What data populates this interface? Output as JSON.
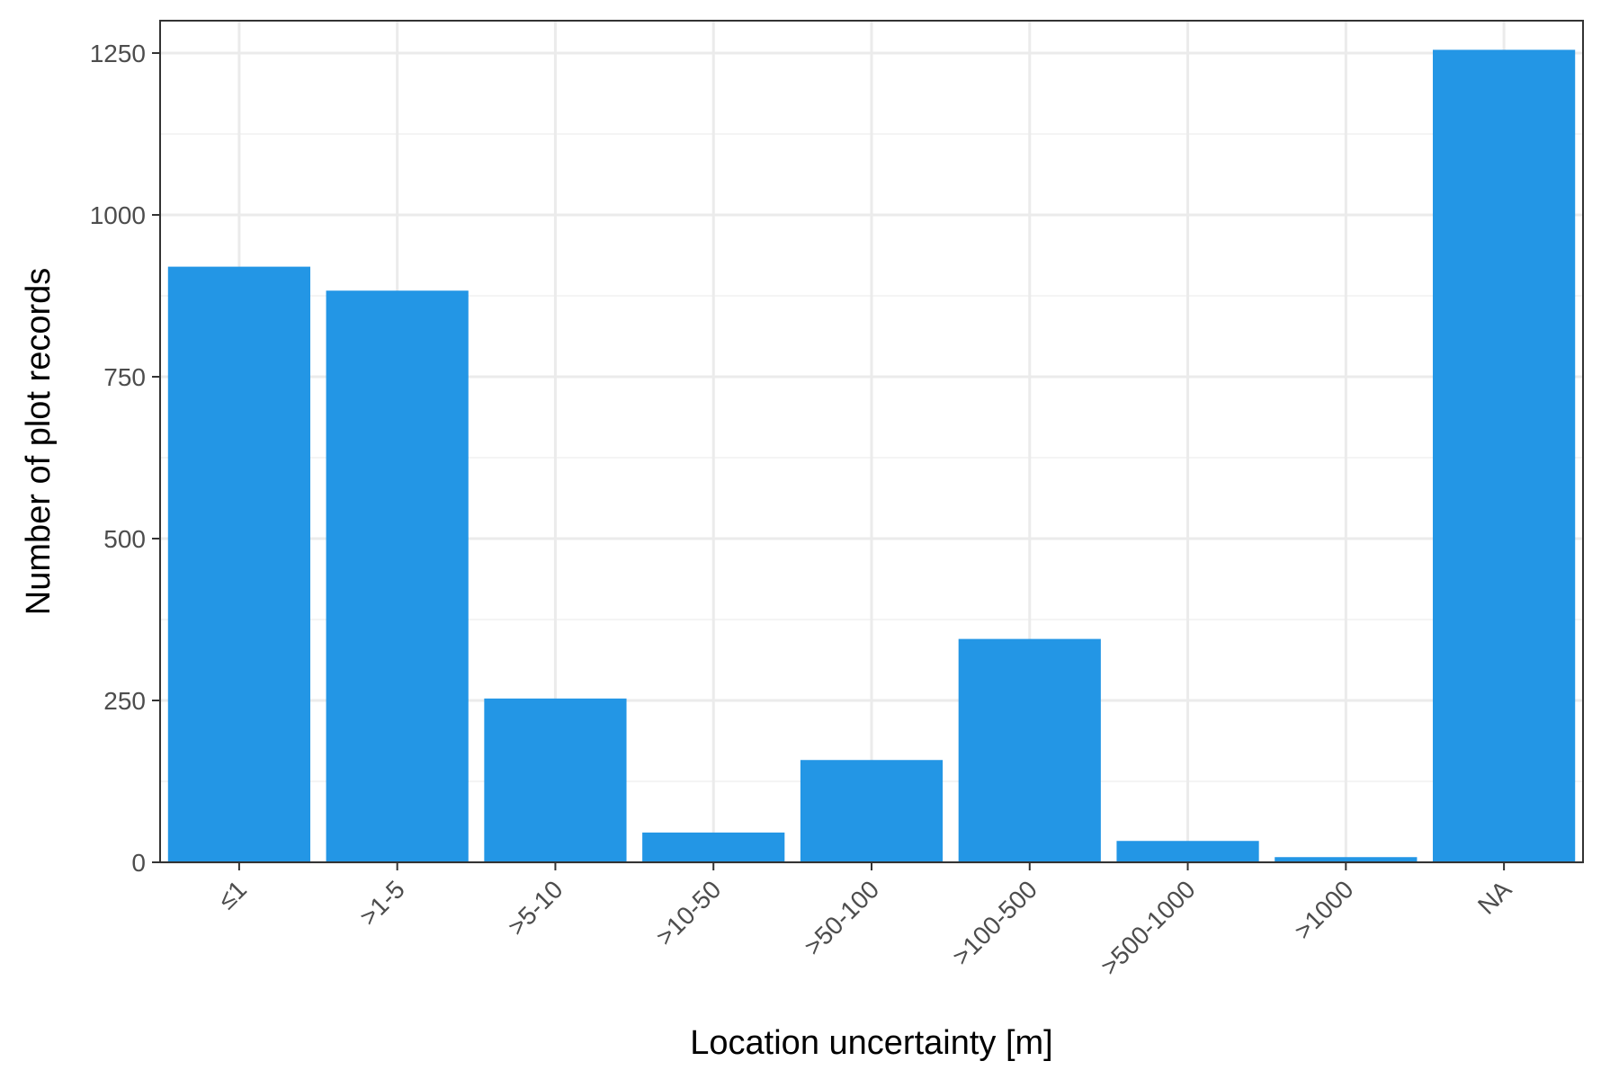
{
  "chart_data": {
    "type": "bar",
    "title": "",
    "xlabel": "Location uncertainty [m]",
    "ylabel": "Number of plot records",
    "categories": [
      "≤1",
      ">1-5",
      ">5-10",
      ">10-50",
      ">50-100",
      ">100-500",
      ">500-1000",
      ">1000",
      "NA"
    ],
    "values": [
      920,
      883,
      253,
      46,
      158,
      345,
      33,
      8,
      1255
    ],
    "ylim": [
      0,
      1300
    ],
    "yticks": [
      0,
      250,
      500,
      750,
      1000,
      1250
    ],
    "grid": true,
    "legend": "none",
    "bar_color": "#2396e5"
  }
}
